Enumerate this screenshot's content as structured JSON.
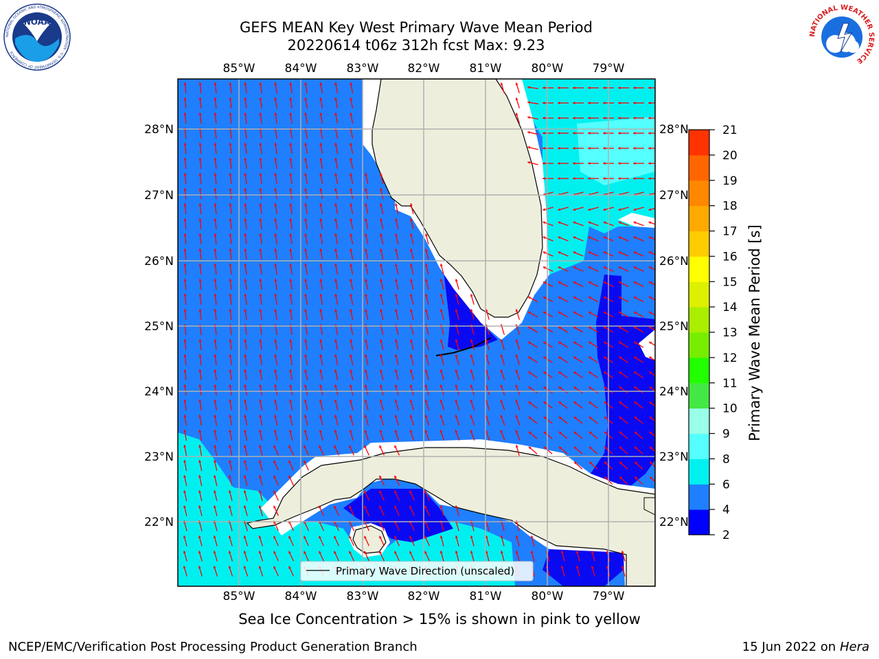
{
  "title": {
    "line1": "GEFS MEAN Key West Primary Wave Mean Period",
    "line2": "20220614 t06z 312h fcst   Max: 9.23"
  },
  "map": {
    "lon_labels": [
      "85°W",
      "84°W",
      "83°W",
      "82°W",
      "81°W",
      "80°W",
      "79°W"
    ],
    "lat_labels": [
      "28°N",
      "27°N",
      "26°N",
      "25°N",
      "24°N",
      "23°N",
      "22°N"
    ],
    "legend_label": "Primary Wave Direction (unscaled)",
    "colors": {
      "land": "#eeeedd",
      "sea_4_6": "#1f7fff",
      "sea_2_4": "#0a0af2",
      "sea_6_8": "#00f0f0",
      "sea_8_9": "#55ffff",
      "arrow": "#ff0000",
      "grid": "#b0b0b0"
    }
  },
  "colorbar": {
    "label": "Primary Wave Mean Period [s]",
    "ticks": [
      "2",
      "4",
      "6",
      "8",
      "9",
      "10",
      "11",
      "12",
      "13",
      "14",
      "15",
      "16",
      "17",
      "18",
      "19",
      "20",
      "21"
    ],
    "colors": [
      "#0000ff",
      "#1e7fff",
      "#00f0f0",
      "#55ffff",
      "#99ffe8",
      "#44e844",
      "#22ff00",
      "#77ee00",
      "#aaee00",
      "#ddf000",
      "#ffff00",
      "#ffcc00",
      "#ffaa00",
      "#ff8800",
      "#ff6600",
      "#ff3300"
    ]
  },
  "caption": "Sea Ice Concentration > 15% is shown in pink to yellow",
  "footer": {
    "left": "NCEP/EMC/Verification Post Processing Product Generation Branch",
    "right_date": "15 Jun 2022 on",
    "right_host": "Hera"
  },
  "logos": {
    "noaa_text": "NOAA",
    "noaa_ring": "NATIONAL OCEANIC AND ATMOSPHERIC ADMINISTRATION · U.S. DEPARTMENT OF COMMERCE",
    "nws_ring": "NATIONAL WEATHER SERVICE"
  }
}
